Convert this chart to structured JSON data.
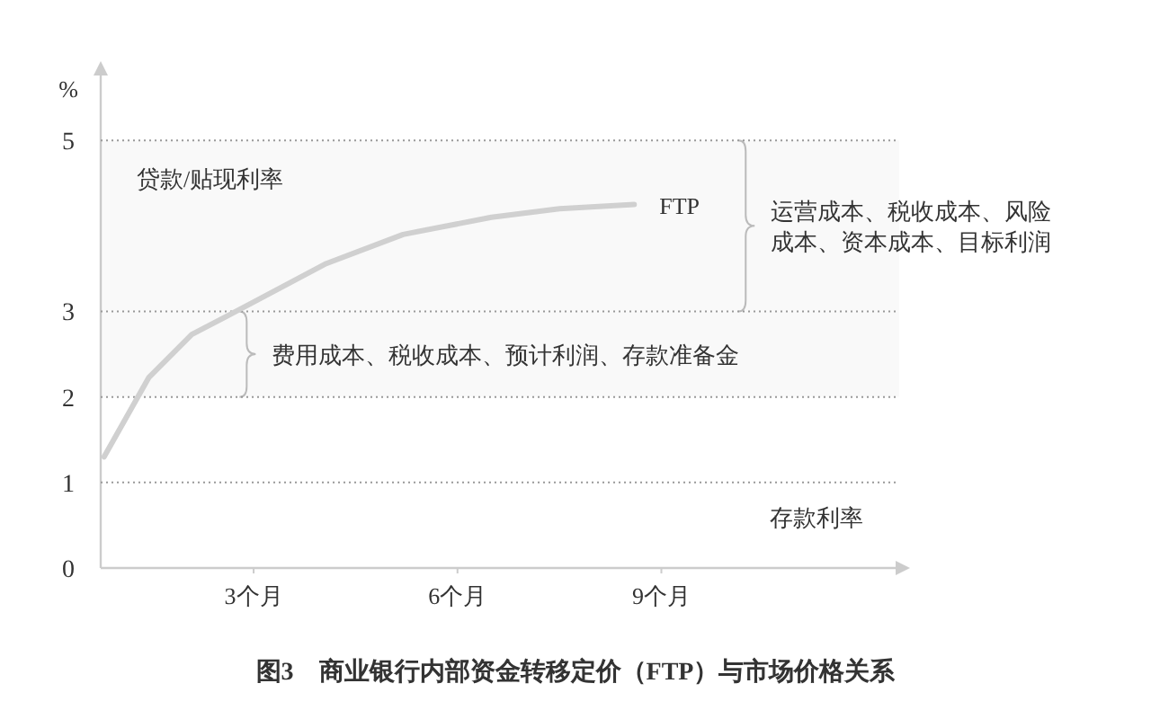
{
  "chart_data": {
    "type": "line",
    "title": "图3　商业银行内部资金转移定价（FTP）与市场价格关系",
    "ylabel": "%",
    "x": [
      0.8,
      1.46,
      2.09,
      2.98,
      4.07,
      5.2,
      6.5,
      7.5,
      8.6
    ],
    "series": [
      {
        "name": "FTP",
        "color": "#d0d0d0",
        "values": [
          1.3,
          2.23,
          2.73,
          3.1,
          3.56,
          3.9,
          4.1,
          4.2,
          4.25
        ]
      }
    ],
    "xlim": [
      0.75,
      12.5
    ],
    "xticks": [
      {
        "value": 3,
        "label": "3个月"
      },
      {
        "value": 6,
        "label": "6个月"
      },
      {
        "value": 9,
        "label": "9个月"
      }
    ],
    "ylim": [
      0,
      5.8
    ],
    "yticks": [
      0,
      1,
      2,
      3,
      5
    ],
    "ref_lines": [
      {
        "axis": "y",
        "value": 5,
        "label": "贷款/贴现利率"
      },
      {
        "axis": "y",
        "value": 3
      },
      {
        "axis": "y",
        "value": 2
      },
      {
        "axis": "y",
        "value": 1,
        "label": "存款利率"
      }
    ],
    "bands": [
      {
        "axis": "y",
        "from": 3,
        "to": 5,
        "label": "运营成本、税收成本、风险成本、资本成本、目标利润"
      },
      {
        "axis": "y",
        "from": 2,
        "to": 3,
        "label": "费用成本、税收成本、预计利润、存款准备金"
      }
    ],
    "grid": false,
    "marker": "none",
    "line_style": "solid"
  }
}
